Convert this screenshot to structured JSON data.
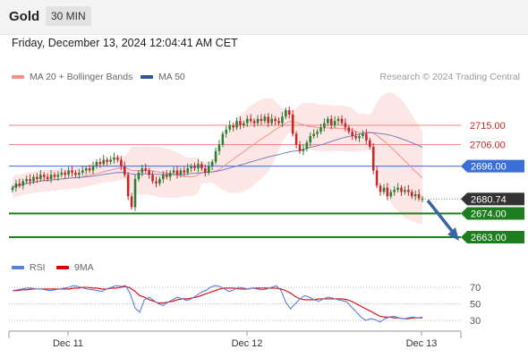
{
  "header": {
    "title": "Gold",
    "timeframe": "30 MIN"
  },
  "datetime": "Friday, December 13, 2024 12:04:41 AM CET",
  "legend": {
    "ma20": {
      "label": "MA 20 + Bollinger Bands",
      "color": "#f4908a"
    },
    "ma50": {
      "label": "MA 50",
      "color": "#2f5597"
    },
    "credit": "Research © 2024 Trading Central"
  },
  "rsi_legend": {
    "rsi": {
      "label": "RSI",
      "color": "#5b7fd8"
    },
    "ma9": {
      "label": "9MA",
      "color": "#e00000"
    }
  },
  "colors": {
    "up": "#2e7d32",
    "down": "#c62828",
    "band": "#fde3e3",
    "pivot": "#1e7d1e",
    "current": "#3a6fd8",
    "arrow": "#3864a8"
  },
  "chart_data": {
    "type": "candlestick",
    "x_ticks": [
      "Dec 11",
      "Dec 12",
      "Dec 13"
    ],
    "ylim": [
      2655,
      2735
    ],
    "resistance_levels": [
      {
        "label": "2715.00",
        "value": 2715.0
      },
      {
        "label": "2706.00",
        "value": 2706.0
      }
    ],
    "current_level": {
      "label": "2696.00",
      "value": 2696.0
    },
    "last_price": {
      "label": "2680.74",
      "value": 2680.74
    },
    "support_levels": [
      {
        "label": "2674.00",
        "value": 2674.0
      },
      {
        "label": "2663.00",
        "value": 2663.0
      }
    ],
    "closes": [
      2686,
      2688,
      2687,
      2689,
      2690,
      2689,
      2691,
      2690,
      2692,
      2691,
      2690,
      2692,
      2691,
      2692,
      2693,
      2692,
      2694,
      2693,
      2692,
      2693,
      2694,
      2695,
      2694,
      2696,
      2698,
      2697,
      2699,
      2698,
      2699,
      2700,
      2699,
      2696,
      2692,
      2682,
      2677,
      2690,
      2693,
      2695,
      2694,
      2692,
      2689,
      2688,
      2690,
      2692,
      2691,
      2693,
      2694,
      2692,
      2694,
      2693,
      2695,
      2696,
      2695,
      2697,
      2695,
      2693,
      2696,
      2698,
      2703,
      2706,
      2711,
      2713,
      2715,
      2714,
      2717,
      2715,
      2716,
      2718,
      2717,
      2716,
      2718,
      2717,
      2719,
      2716,
      2718,
      2717,
      2716,
      2719,
      2722,
      2720,
      2711,
      2706,
      2703,
      2704,
      2707,
      2710,
      2711,
      2712,
      2714,
      2716,
      2718,
      2715,
      2717,
      2718,
      2716,
      2714,
      2712,
      2710,
      2709,
      2710,
      2711,
      2708,
      2705,
      2694,
      2687,
      2684,
      2686,
      2682,
      2684,
      2685,
      2686,
      2684,
      2685,
      2684,
      2682,
      2683,
      2681,
      2681
    ],
    "rsi": {
      "ylim": [
        20,
        80
      ],
      "levels": [
        70,
        50,
        30
      ],
      "rsi_values": [
        66,
        67,
        68,
        69,
        69,
        68,
        68,
        67,
        66,
        67,
        68,
        69,
        70,
        72,
        71,
        69,
        68,
        67,
        66,
        65,
        68,
        70,
        72,
        71,
        72,
        62,
        45,
        40,
        55,
        58,
        54,
        50,
        48,
        52,
        55,
        58,
        56,
        54,
        56,
        60,
        64,
        66,
        70,
        72,
        71,
        68,
        65,
        67,
        70,
        69,
        68,
        69,
        68,
        67,
        68,
        70,
        72,
        66,
        52,
        44,
        50,
        56,
        60,
        58,
        55,
        53,
        56,
        58,
        57,
        55,
        54,
        52,
        46,
        40,
        34,
        30,
        32,
        31,
        28,
        32,
        34,
        35,
        33,
        32,
        33,
        34,
        33,
        34
      ],
      "ma9_values": [
        66,
        66,
        67,
        67,
        68,
        68,
        68,
        68,
        68,
        68,
        68,
        68,
        68,
        69,
        69,
        70,
        70,
        69,
        69,
        68,
        68,
        69,
        69,
        70,
        71,
        69,
        65,
        60,
        58,
        55,
        53,
        51,
        51,
        52,
        53,
        55,
        56,
        56,
        57,
        58,
        60,
        62,
        64,
        66,
        68,
        69,
        69,
        69,
        68,
        68,
        68,
        69,
        69,
        69,
        69,
        69,
        69,
        68,
        66,
        63,
        59,
        56,
        55,
        55,
        55,
        56,
        56,
        56,
        56,
        56,
        56,
        55,
        53,
        50,
        47,
        44,
        41,
        38,
        35,
        34,
        34,
        33,
        33,
        32,
        32,
        33,
        33,
        33
      ]
    }
  }
}
